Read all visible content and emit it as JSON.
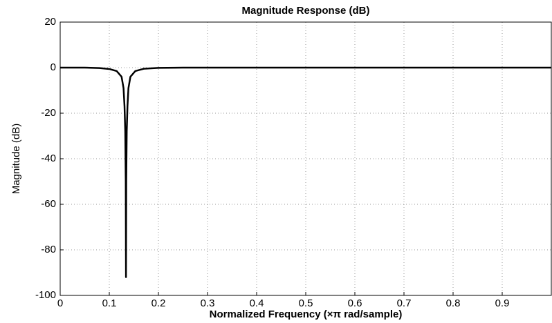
{
  "chart_data": {
    "type": "line",
    "title": "Magnitude Response (dB)",
    "x_label": "Normalized Frequency (×π rad/sample)",
    "y_label": "Magnitude (dB)",
    "x": [
      0,
      0.05,
      0.08,
      0.1,
      0.115,
      0.125,
      0.129,
      0.131,
      0.1325,
      0.1335,
      0.134,
      0.1345,
      0.1355,
      0.137,
      0.139,
      0.143,
      0.153,
      0.17,
      0.2,
      0.25,
      1
    ],
    "series": [
      {
        "name": "Magnitude",
        "color": "#000000",
        "values": [
          0,
          0,
          -0.2,
          -0.6,
          -1.5,
          -4,
          -9,
          -17,
          -28,
          -50,
          -92,
          -50,
          -28,
          -17,
          -9,
          -4,
          -1.5,
          -0.5,
          -0.1,
          0,
          0
        ]
      }
    ],
    "xlim": [
      0,
      1
    ],
    "ylim": [
      -100,
      20
    ],
    "xticks": [
      0,
      0.1,
      0.2,
      0.3,
      0.4,
      0.5,
      0.6,
      0.7,
      0.8,
      0.9
    ],
    "yticks": [
      -100,
      -80,
      -60,
      -40,
      -20,
      0,
      20
    ],
    "grid": true
  }
}
